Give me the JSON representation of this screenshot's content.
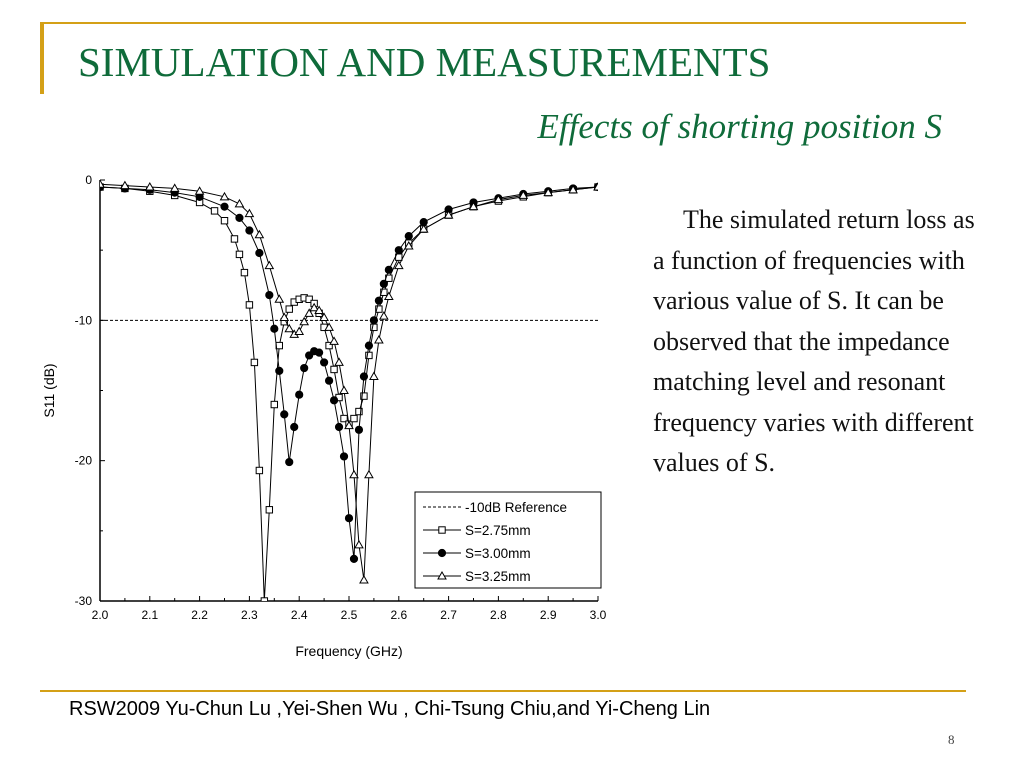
{
  "slide": {
    "title": "SIMULATION AND MEASUREMENTS",
    "subtitle": "Effects of shorting position S",
    "body": "The simulated return loss as a function of frequencies with various value of S. It can be observed that the impedance matching level and resonant frequency varies with different values of S.",
    "footer": "RSW2009 Yu-Chun Lu ,Yei-Shen Wu , Chi-Tsung Chiu,and Yi-Cheng Lin",
    "page_number": "8"
  },
  "colors": {
    "title": "#0f6b3a",
    "rule": "#d4a017"
  },
  "chart_data": {
    "type": "line",
    "xlabel": "Frequency (GHz)",
    "ylabel": "S11 (dB)",
    "xlim": [
      2.0,
      3.0
    ],
    "ylim": [
      -30,
      0
    ],
    "xticks": [
      "2.0",
      "2.1",
      "2.2",
      "2.3",
      "2.4",
      "2.5",
      "2.6",
      "2.7",
      "2.8",
      "2.9",
      "3.0"
    ],
    "yticks": [
      "0",
      "-10",
      "-20",
      "-30"
    ],
    "legend_position": "bottom-right",
    "reference": {
      "name": "-10dB Reference",
      "y": -10
    },
    "series": [
      {
        "name": "S=2.75mm",
        "marker": "square",
        "x": [
          2.0,
          2.05,
          2.1,
          2.15,
          2.2,
          2.23,
          2.25,
          2.27,
          2.28,
          2.29,
          2.3,
          2.31,
          2.32,
          2.33,
          2.34,
          2.35,
          2.36,
          2.37,
          2.38,
          2.39,
          2.4,
          2.41,
          2.42,
          2.43,
          2.44,
          2.45,
          2.46,
          2.47,
          2.48,
          2.49,
          2.5,
          2.51,
          2.52,
          2.53,
          2.54,
          2.55,
          2.56,
          2.57,
          2.58,
          2.6,
          2.62,
          2.65,
          2.7,
          2.75,
          2.8,
          2.85,
          2.9,
          2.95,
          3.0
        ],
        "y": [
          -0.5,
          -0.6,
          -0.8,
          -1.1,
          -1.6,
          -2.2,
          -2.9,
          -4.2,
          -5.3,
          -6.6,
          -8.9,
          -13,
          -20.7,
          -30,
          -23.5,
          -16,
          -11.8,
          -10.1,
          -9.2,
          -8.7,
          -8.5,
          -8.4,
          -8.5,
          -8.8,
          -9.5,
          -10.5,
          -11.8,
          -13.5,
          -15.5,
          -17,
          -17.4,
          -17,
          -16.5,
          -15.4,
          -12.5,
          -10.5,
          -9.2,
          -8,
          -7,
          -5.5,
          -4.5,
          -3.5,
          -2.5,
          -1.9,
          -1.5,
          -1.2,
          -0.9,
          -0.7,
          -0.5
        ]
      },
      {
        "name": "S=3.00mm",
        "marker": "circle",
        "x": [
          2.0,
          2.05,
          2.1,
          2.15,
          2.2,
          2.25,
          2.28,
          2.3,
          2.32,
          2.34,
          2.35,
          2.36,
          2.37,
          2.38,
          2.39,
          2.4,
          2.41,
          2.42,
          2.43,
          2.44,
          2.45,
          2.46,
          2.47,
          2.48,
          2.49,
          2.5,
          2.51,
          2.52,
          2.53,
          2.54,
          2.55,
          2.56,
          2.57,
          2.58,
          2.6,
          2.62,
          2.65,
          2.7,
          2.75,
          2.8,
          2.85,
          2.9,
          2.95,
          3.0
        ],
        "y": [
          -0.5,
          -0.6,
          -0.7,
          -0.9,
          -1.2,
          -1.9,
          -2.7,
          -3.6,
          -5.2,
          -8.2,
          -10.6,
          -13.6,
          -16.7,
          -20.1,
          -17.6,
          -15.3,
          -13.4,
          -12.5,
          -12.2,
          -12.3,
          -13,
          -14.3,
          -15.7,
          -17.6,
          -19.7,
          -24.1,
          -27,
          -17.8,
          -14,
          -11.8,
          -10,
          -8.6,
          -7.4,
          -6.4,
          -5,
          -4,
          -3,
          -2.1,
          -1.6,
          -1.3,
          -1,
          -0.8,
          -0.6,
          -0.5
        ]
      },
      {
        "name": "S=3.25mm",
        "marker": "triangle",
        "x": [
          2.0,
          2.05,
          2.1,
          2.15,
          2.2,
          2.25,
          2.28,
          2.3,
          2.32,
          2.34,
          2.36,
          2.37,
          2.38,
          2.39,
          2.4,
          2.41,
          2.42,
          2.43,
          2.44,
          2.45,
          2.46,
          2.47,
          2.48,
          2.49,
          2.5,
          2.51,
          2.52,
          2.53,
          2.54,
          2.55,
          2.56,
          2.57,
          2.58,
          2.6,
          2.62,
          2.65,
          2.7,
          2.75,
          2.8,
          2.85,
          2.9,
          2.95,
          3.0
        ],
        "y": [
          -0.3,
          -0.4,
          -0.5,
          -0.6,
          -0.8,
          -1.2,
          -1.7,
          -2.4,
          -3.9,
          -6.1,
          -8.5,
          -9.8,
          -10.6,
          -11,
          -10.8,
          -10.1,
          -9.5,
          -9.1,
          -9.3,
          -9.8,
          -10.5,
          -11.5,
          -13,
          -15,
          -17.5,
          -21,
          -26,
          -28.5,
          -21,
          -14,
          -11.4,
          -9.7,
          -8.3,
          -6.1,
          -4.7,
          -3.5,
          -2.5,
          -1.9,
          -1.4,
          -1.1,
          -0.9,
          -0.7,
          -0.5
        ]
      }
    ]
  }
}
